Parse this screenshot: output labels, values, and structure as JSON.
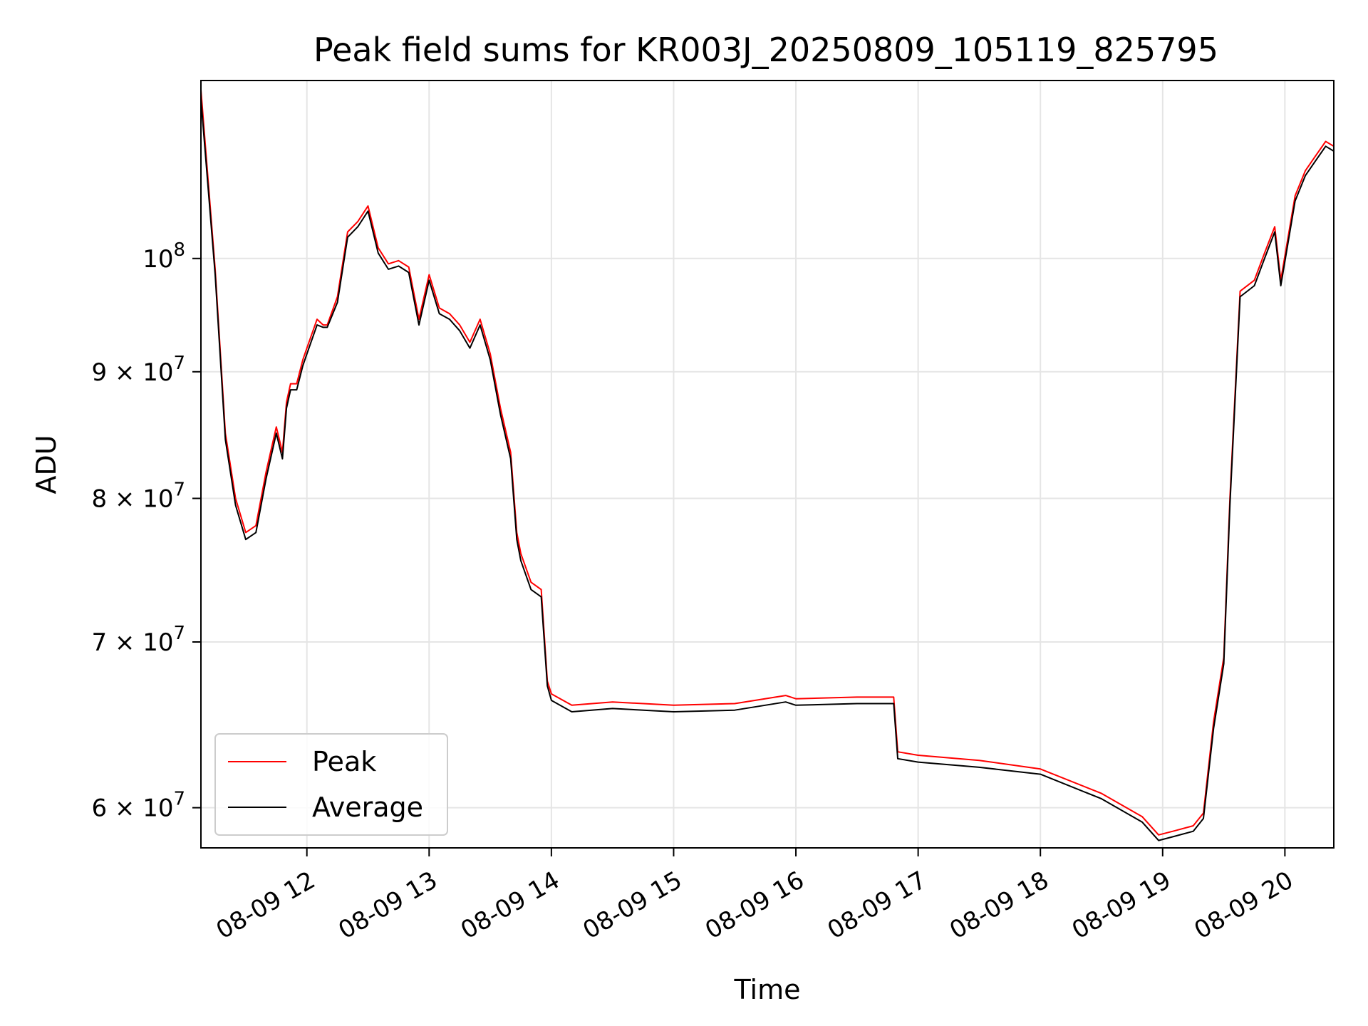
{
  "chart_data": {
    "type": "line",
    "title": "Peak field sums for KR003J_20250809_105119_825795",
    "xlabel": "Time",
    "ylabel": "ADU",
    "yscale": "log",
    "xlim": [
      "08-09 11:08",
      "08-09 20:24"
    ],
    "ylim": [
      57800000,
      118000000
    ],
    "grid": true,
    "legend_position": "lower-left",
    "x_ticks": [
      "08-09 12",
      "08-09 13",
      "08-09 14",
      "08-09 15",
      "08-09 16",
      "08-09 17",
      "08-09 18",
      "08-09 19",
      "08-09 20"
    ],
    "y_ticks": [
      {
        "value": 60000000,
        "label": "6 × 10^7"
      },
      {
        "value": 70000000,
        "label": "7 × 10^7"
      },
      {
        "value": 80000000,
        "label": "8 × 10^7"
      },
      {
        "value": 90000000,
        "label": "9 × 10^7"
      },
      {
        "value": 100000000,
        "label": "10^8"
      }
    ],
    "series": [
      {
        "name": "Peak",
        "color": "#ff0000",
        "x": [
          "08-09 11:08",
          "08-09 11:15",
          "08-09 11:20",
          "08-09 11:25",
          "08-09 11:30",
          "08-09 11:35",
          "08-09 11:40",
          "08-09 11:45",
          "08-09 11:48",
          "08-09 11:50",
          "08-09 11:52",
          "08-09 11:55",
          "08-09 11:58",
          "08-09 12:00",
          "08-09 12:05",
          "08-09 12:08",
          "08-09 12:10",
          "08-09 12:15",
          "08-09 12:20",
          "08-09 12:25",
          "08-09 12:30",
          "08-09 12:35",
          "08-09 12:40",
          "08-09 12:45",
          "08-09 12:50",
          "08-09 12:55",
          "08-09 13:00",
          "08-09 13:05",
          "08-09 13:10",
          "08-09 13:15",
          "08-09 13:20",
          "08-09 13:25",
          "08-09 13:30",
          "08-09 13:35",
          "08-09 13:40",
          "08-09 13:43",
          "08-09 13:45",
          "08-09 13:50",
          "08-09 13:55",
          "08-09 13:58",
          "08-09 14:00",
          "08-09 14:10",
          "08-09 14:30",
          "08-09 15:00",
          "08-09 15:30",
          "08-09 15:55",
          "08-09 16:00",
          "08-09 16:30",
          "08-09 16:48",
          "08-09 16:50",
          "08-09 17:00",
          "08-09 17:30",
          "08-09 18:00",
          "08-09 18:30",
          "08-09 18:50",
          "08-09 18:58",
          "08-09 19:05",
          "08-09 19:15",
          "08-09 19:20",
          "08-09 19:25",
          "08-09 19:30",
          "08-09 19:33",
          "08-09 19:38",
          "08-09 19:45",
          "08-09 19:50",
          "08-09 19:55",
          "08-09 19:58",
          "08-09 20:05",
          "08-09 20:10",
          "08-09 20:15",
          "08-09 20:20",
          "08-09 20:24"
        ],
        "y": [
          117000000,
          99000000,
          85000000,
          80000000,
          77500000,
          78000000,
          82000000,
          85500000,
          83500000,
          87500000,
          89000000,
          89000000,
          91000000,
          92000000,
          94500000,
          94000000,
          94000000,
          96500000,
          102500000,
          103500000,
          105000000,
          101000000,
          99500000,
          99800000,
          99200000,
          94500000,
          98500000,
          95500000,
          95000000,
          94000000,
          92500000,
          94500000,
          91500000,
          87000000,
          83500000,
          77500000,
          76000000,
          74000000,
          73500000,
          67500000,
          66700000,
          66000000,
          66200000,
          66000000,
          66100000,
          66600000,
          66400000,
          66500000,
          66500000,
          63200000,
          63000000,
          62700000,
          62200000,
          60800000,
          59500000,
          58500000,
          58700000,
          59000000,
          59700000,
          65000000,
          69000000,
          80000000,
          97000000,
          98000000,
          100500000,
          103000000,
          98000000,
          106000000,
          108500000,
          110000000,
          111500000,
          111000000
        ]
      },
      {
        "name": "Average",
        "color": "#000000",
        "x": [
          "08-09 11:08",
          "08-09 11:15",
          "08-09 11:20",
          "08-09 11:25",
          "08-09 11:30",
          "08-09 11:35",
          "08-09 11:40",
          "08-09 11:45",
          "08-09 11:48",
          "08-09 11:50",
          "08-09 11:52",
          "08-09 11:55",
          "08-09 11:58",
          "08-09 12:00",
          "08-09 12:05",
          "08-09 12:08",
          "08-09 12:10",
          "08-09 12:15",
          "08-09 12:20",
          "08-09 12:25",
          "08-09 12:30",
          "08-09 12:35",
          "08-09 12:40",
          "08-09 12:45",
          "08-09 12:50",
          "08-09 12:55",
          "08-09 13:00",
          "08-09 13:05",
          "08-09 13:10",
          "08-09 13:15",
          "08-09 13:20",
          "08-09 13:25",
          "08-09 13:30",
          "08-09 13:35",
          "08-09 13:40",
          "08-09 13:43",
          "08-09 13:45",
          "08-09 13:50",
          "08-09 13:55",
          "08-09 13:58",
          "08-09 14:00",
          "08-09 14:10",
          "08-09 14:30",
          "08-09 15:00",
          "08-09 15:30",
          "08-09 15:55",
          "08-09 16:00",
          "08-09 16:30",
          "08-09 16:48",
          "08-09 16:50",
          "08-09 17:00",
          "08-09 17:30",
          "08-09 18:00",
          "08-09 18:30",
          "08-09 18:50",
          "08-09 18:58",
          "08-09 19:05",
          "08-09 19:15",
          "08-09 19:20",
          "08-09 19:25",
          "08-09 19:30",
          "08-09 19:33",
          "08-09 19:38",
          "08-09 19:45",
          "08-09 19:50",
          "08-09 19:55",
          "08-09 19:58",
          "08-09 20:05",
          "08-09 20:10",
          "08-09 20:15",
          "08-09 20:20",
          "08-09 20:24"
        ],
        "y": [
          116000000,
          98500000,
          84500000,
          79500000,
          77000000,
          77500000,
          81500000,
          85000000,
          83000000,
          87000000,
          88500000,
          88500000,
          90500000,
          91500000,
          94000000,
          93800000,
          93800000,
          96000000,
          102000000,
          103000000,
          104500000,
          100500000,
          99000000,
          99300000,
          98700000,
          94000000,
          98000000,
          95000000,
          94500000,
          93500000,
          92000000,
          94000000,
          91000000,
          86500000,
          83000000,
          77000000,
          75500000,
          73500000,
          73000000,
          67200000,
          66300000,
          65600000,
          65800000,
          65600000,
          65700000,
          66200000,
          66000000,
          66100000,
          66100000,
          62800000,
          62600000,
          62300000,
          61900000,
          60500000,
          59200000,
          58200000,
          58400000,
          58700000,
          59400000,
          64600000,
          68600000,
          79500000,
          96500000,
          97500000,
          100000000,
          102500000,
          97500000,
          105500000,
          108000000,
          109500000,
          111000000,
          110500000
        ]
      }
    ]
  }
}
